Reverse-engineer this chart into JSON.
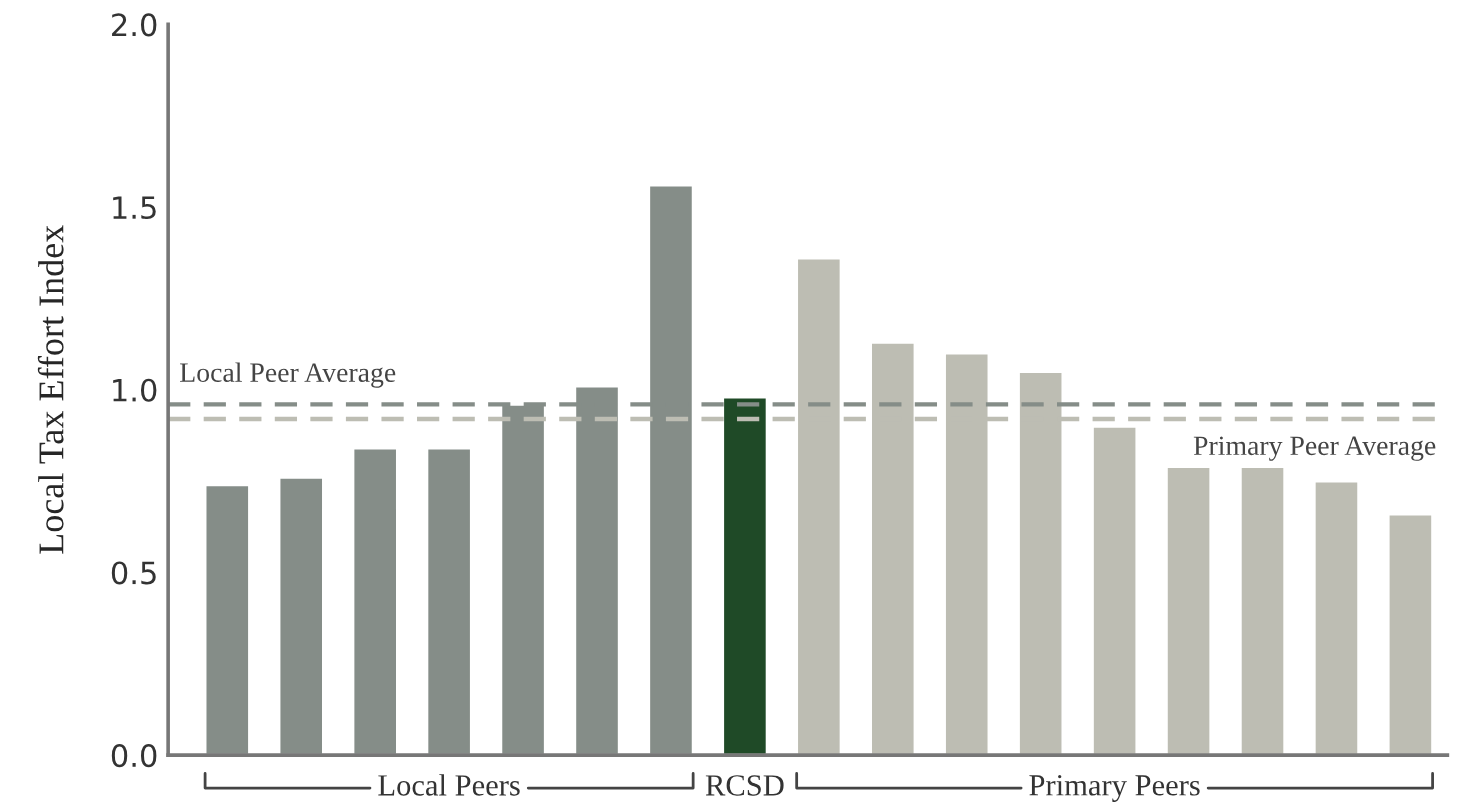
{
  "chart_data": {
    "type": "bar",
    "ylabel": "Local Tax Effort Index",
    "categories": [
      null,
      null,
      null,
      null,
      null,
      null,
      null,
      null,
      null,
      null,
      null,
      null,
      null,
      null,
      null,
      null,
      null
    ],
    "values": [
      0.74,
      0.76,
      0.84,
      0.84,
      0.96,
      1.01,
      1.56,
      0.98,
      1.36,
      1.13,
      1.1,
      1.05,
      0.9,
      0.79,
      0.79,
      0.75,
      0.66
    ],
    "colors": [
      "#858d88",
      "#858d88",
      "#858d88",
      "#858d88",
      "#858d88",
      "#858d88",
      "#858d88",
      "#1f4a27",
      "#bdbdb3",
      "#bdbdb3",
      "#bdbdb3",
      "#bdbdb3",
      "#bdbdb3",
      "#bdbdb3",
      "#bdbdb3",
      "#bdbdb3",
      "#bdbdb3"
    ],
    "ylim": [
      0,
      2.0
    ],
    "yticks": [
      {
        "value": 0,
        "label": "0.0"
      },
      {
        "value": 0.5,
        "label": "0.5"
      },
      {
        "value": 1.0,
        "label": "1.0"
      },
      {
        "value": 1.5,
        "label": "1.5"
      },
      {
        "value": 2.0,
        "label": "2.0"
      }
    ],
    "ref_lines": [
      {
        "axis": "y",
        "value": 0.96,
        "label": "Local Peer Average",
        "color": "#858d88",
        "line_style": "dashed"
      },
      {
        "axis": "y",
        "value": 0.92,
        "label": "Primary Peer Average",
        "color": "#bdbdb3",
        "line_style": "dashed"
      }
    ],
    "annotations": [
      "Local Peers",
      "RCSD",
      "Primary Peers"
    ],
    "grid": false
  }
}
